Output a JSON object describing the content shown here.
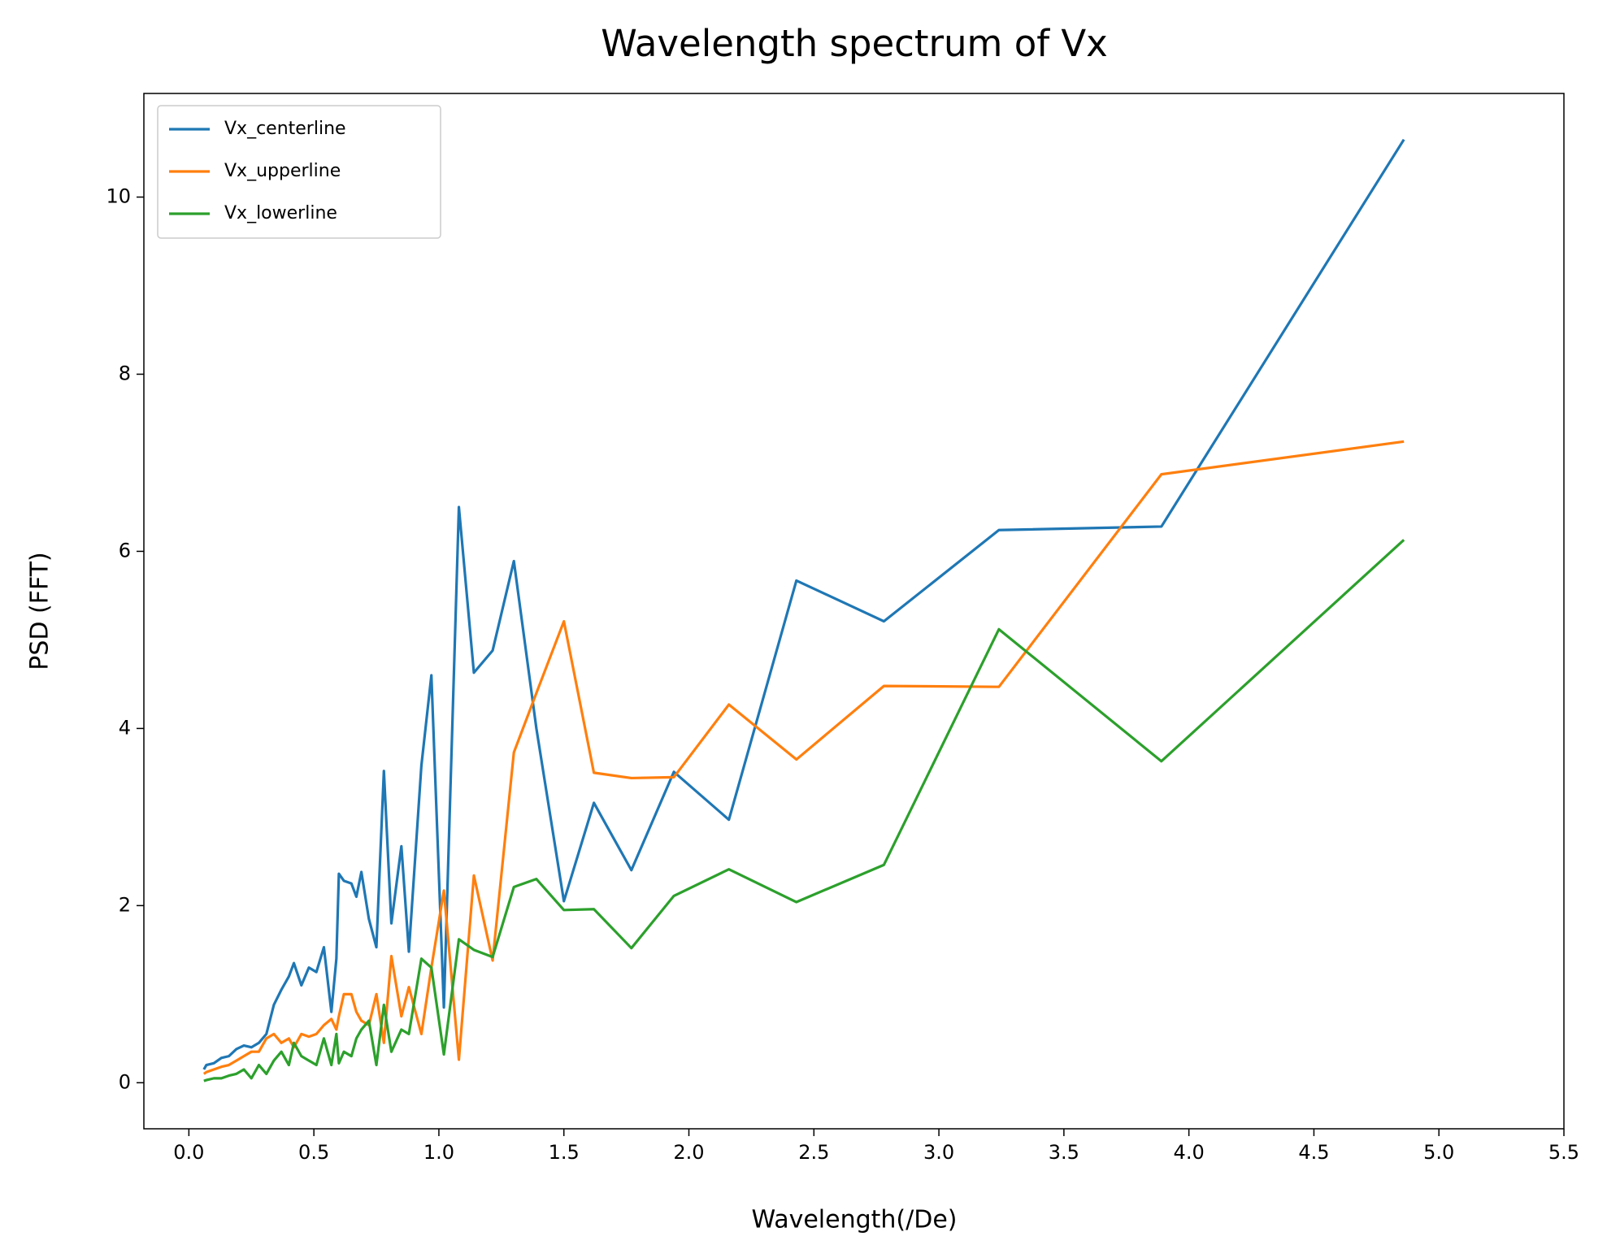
{
  "chart_data": {
    "type": "line",
    "title": "Wavelength spectrum of Vx",
    "x_label": "Wavelength(/De)",
    "y_label": "PSD (FFT)",
    "x": [
      4.86,
      3.89,
      3.24,
      2.78,
      2.43,
      2.16,
      1.94,
      1.77,
      1.62,
      1.5,
      1.39,
      1.3,
      1.215,
      1.14,
      1.08,
      1.02,
      0.97,
      0.93,
      0.88,
      0.85,
      0.81,
      0.78,
      0.75,
      0.72,
      0.69,
      0.67,
      0.65,
      0.62,
      0.6,
      0.59,
      0.57,
      0.54,
      0.51,
      0.48,
      0.45,
      0.42,
      0.4,
      0.37,
      0.34,
      0.31,
      0.28,
      0.25,
      0.22,
      0.19,
      0.16,
      0.13,
      0.1,
      0.07,
      0.06
    ],
    "series": [
      {
        "name": "Vx_centerline",
        "color": "#1f77b4",
        "values": [
          10.65,
          6.28,
          6.24,
          5.21,
          5.67,
          2.97,
          3.51,
          2.4,
          3.16,
          2.05,
          4.0,
          5.89,
          4.88,
          4.63,
          6.5,
          0.85,
          4.6,
          3.58,
          1.48,
          2.67,
          1.8,
          3.52,
          1.53,
          1.85,
          2.38,
          2.1,
          2.25,
          2.28,
          2.36,
          1.4,
          0.8,
          1.53,
          1.25,
          1.3,
          1.1,
          1.35,
          1.2,
          1.05,
          0.88,
          0.55,
          0.45,
          0.4,
          0.42,
          0.38,
          0.3,
          0.28,
          0.22,
          0.2,
          0.15
        ]
      },
      {
        "name": "Vx_upperline",
        "color": "#ff7f0e",
        "values": [
          7.24,
          6.87,
          4.47,
          4.48,
          3.65,
          4.27,
          3.45,
          3.44,
          3.5,
          5.21,
          4.4,
          3.73,
          1.38,
          2.34,
          0.26,
          2.17,
          1.3,
          0.55,
          1.08,
          0.75,
          1.43,
          0.45,
          1.0,
          0.65,
          0.7,
          0.8,
          1.0,
          1.0,
          0.75,
          0.6,
          0.72,
          0.65,
          0.55,
          0.52,
          0.55,
          0.4,
          0.5,
          0.45,
          0.55,
          0.5,
          0.35,
          0.35,
          0.3,
          0.25,
          0.2,
          0.18,
          0.15,
          0.12,
          0.1
        ]
      },
      {
        "name": "Vx_lowerline",
        "color": "#2ca02c",
        "values": [
          6.13,
          3.63,
          5.12,
          2.46,
          2.04,
          2.41,
          2.11,
          1.52,
          1.96,
          1.95,
          2.3,
          2.21,
          1.42,
          1.5,
          1.62,
          0.32,
          1.3,
          1.4,
          0.55,
          0.6,
          0.35,
          0.88,
          0.2,
          0.7,
          0.6,
          0.5,
          0.3,
          0.35,
          0.22,
          0.55,
          0.2,
          0.5,
          0.2,
          0.25,
          0.3,
          0.45,
          0.2,
          0.35,
          0.25,
          0.1,
          0.2,
          0.05,
          0.15,
          0.1,
          0.08,
          0.05,
          0.05,
          0.03,
          0.02
        ]
      }
    ],
    "xlim": [
      -0.18,
      5.5
    ],
    "ylim": [
      -0.52,
      11.17
    ],
    "xticks": [
      {
        "value": 0,
        "label": "0.0"
      },
      0.5,
      {
        "value": 1,
        "label": "1.0"
      },
      1.5,
      {
        "value": 2,
        "label": "2.0"
      },
      2.5,
      {
        "value": 3,
        "label": "3.0"
      },
      3.5,
      {
        "value": 4,
        "label": "4.0"
      },
      4.5,
      {
        "value": 5,
        "label": "5.0"
      },
      5.5
    ],
    "yticks": [
      0,
      2,
      4,
      6,
      8,
      10
    ],
    "legend": "upper left",
    "grid": false
  }
}
